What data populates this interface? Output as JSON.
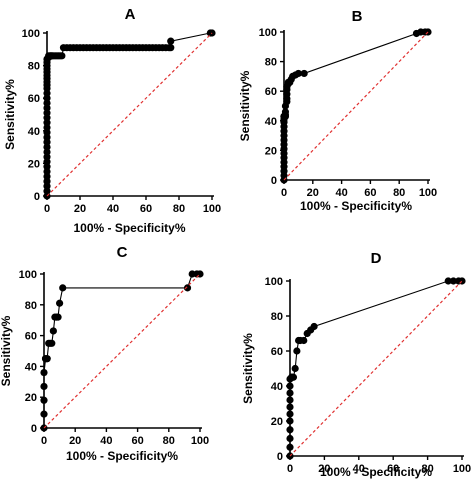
{
  "chart_data": [
    {
      "type": "line",
      "panel": "A",
      "xlabel": "100% - Specificity%",
      "ylabel": "Sensitivity%",
      "xlim": [
        0,
        100
      ],
      "ylim": [
        0,
        100
      ],
      "xticks": [
        0,
        20,
        40,
        60,
        80,
        100
      ],
      "yticks": [
        0,
        20,
        40,
        60,
        80,
        100
      ],
      "series": [
        {
          "style": "roc-curve",
          "color": "#000000",
          "x": [
            0,
            0,
            0,
            0,
            0,
            0,
            0,
            0,
            0,
            0,
            0,
            0,
            0,
            0,
            0,
            0,
            0,
            0,
            0,
            0,
            0,
            0,
            0,
            0,
            0,
            0,
            0,
            0,
            0,
            0,
            0,
            0,
            1,
            1,
            2,
            2,
            3,
            3,
            4,
            5,
            6,
            7,
            8,
            9,
            10,
            12,
            14,
            16,
            18,
            20,
            22,
            24,
            26,
            28,
            30,
            32,
            34,
            36,
            38,
            40,
            42,
            44,
            46,
            48,
            50,
            52,
            54,
            56,
            58,
            60,
            62,
            64,
            66,
            68,
            70,
            72,
            74,
            75,
            75,
            99,
            100
          ],
          "y": [
            0,
            3,
            6,
            9,
            12,
            15,
            18,
            21,
            24,
            27,
            30,
            33,
            36,
            39,
            42,
            45,
            48,
            51,
            54,
            57,
            60,
            63,
            66,
            68,
            70,
            72,
            74,
            76,
            78,
            80,
            82,
            84,
            85,
            86,
            86,
            86,
            86,
            86,
            86,
            86,
            86,
            86,
            86,
            86,
            91,
            91,
            91,
            91,
            91,
            91,
            91,
            91,
            91,
            91,
            91,
            91,
            91,
            91,
            91,
            91,
            91,
            91,
            91,
            91,
            91,
            91,
            91,
            91,
            91,
            91,
            91,
            91,
            91,
            91,
            91,
            91,
            91,
            91,
            95,
            100,
            100
          ]
        },
        {
          "style": "reference-line",
          "color": "#e03030",
          "x": [
            0,
            100
          ],
          "y": [
            0,
            100
          ]
        }
      ]
    },
    {
      "type": "line",
      "panel": "B",
      "xlabel": "100% - Specificity%",
      "ylabel": "Sensitivity%",
      "xlim": [
        0,
        100
      ],
      "ylim": [
        0,
        100
      ],
      "xticks": [
        0,
        20,
        40,
        60,
        80,
        100
      ],
      "yticks": [
        0,
        20,
        40,
        60,
        80,
        100
      ],
      "series": [
        {
          "style": "roc-curve",
          "color": "#000000",
          "x": [
            0,
            0,
            0,
            0,
            0,
            0,
            0,
            0,
            0,
            0,
            0,
            0,
            0,
            0,
            0,
            0,
            0,
            0,
            1,
            1,
            1,
            1,
            2,
            2,
            2,
            2,
            2,
            3,
            3,
            4,
            5,
            6,
            8,
            10,
            14,
            92,
            95,
            98,
            100
          ],
          "y": [
            0,
            3,
            6,
            9,
            12,
            15,
            18,
            21,
            24,
            27,
            30,
            33,
            36,
            39,
            41,
            43,
            43,
            43,
            43,
            44,
            46,
            50,
            53,
            55,
            58,
            61,
            63,
            65,
            66,
            66,
            68,
            70,
            71,
            72,
            72,
            99,
            100,
            100,
            100
          ]
        },
        {
          "style": "reference-line",
          "color": "#e03030",
          "x": [
            0,
            100
          ],
          "y": [
            0,
            100
          ]
        }
      ]
    },
    {
      "type": "line",
      "panel": "C",
      "xlabel": "100% - Specificity%",
      "ylabel": "Sensitivity%",
      "xlim": [
        0,
        100
      ],
      "ylim": [
        0,
        100
      ],
      "xticks": [
        0,
        20,
        40,
        60,
        80,
        100
      ],
      "yticks": [
        0,
        20,
        40,
        60,
        80,
        100
      ],
      "series": [
        {
          "style": "roc-curve",
          "color": "#000000",
          "x": [
            0,
            0,
            0,
            0,
            0,
            1,
            1,
            2,
            2,
            3,
            4,
            5,
            6,
            7,
            8,
            9,
            10,
            12,
            92,
            95,
            98,
            100
          ],
          "y": [
            0,
            9,
            18,
            27,
            36,
            45,
            45,
            45,
            45,
            55,
            55,
            55,
            63,
            72,
            72,
            72,
            81,
            91,
            91,
            100,
            100,
            100
          ]
        },
        {
          "style": "reference-line",
          "color": "#e03030",
          "x": [
            0,
            100
          ],
          "y": [
            0,
            100
          ]
        }
      ]
    },
    {
      "type": "line",
      "panel": "D",
      "xlabel": "100% - Specificity%",
      "ylabel": "Sensitivity%",
      "xlim": [
        0,
        100
      ],
      "ylim": [
        0,
        100
      ],
      "xticks": [
        0,
        20,
        40,
        60,
        80,
        100
      ],
      "yticks": [
        0,
        20,
        40,
        60,
        80,
        100
      ],
      "series": [
        {
          "style": "roc-curve",
          "color": "#000000",
          "x": [
            0,
            0,
            0,
            0,
            0,
            0,
            0,
            0,
            0,
            0,
            0,
            1,
            1,
            1,
            2,
            3,
            4,
            5,
            6,
            8,
            10,
            12,
            14,
            92,
            95,
            98,
            100
          ],
          "y": [
            0,
            5,
            10,
            15,
            20,
            24,
            28,
            32,
            36,
            40,
            44,
            45,
            45,
            45,
            45,
            50,
            60,
            66,
            66,
            66,
            70,
            72,
            74,
            100,
            100,
            100,
            100
          ]
        },
        {
          "style": "reference-line",
          "color": "#e03030",
          "x": [
            0,
            100
          ],
          "y": [
            0,
            100
          ]
        }
      ]
    }
  ]
}
